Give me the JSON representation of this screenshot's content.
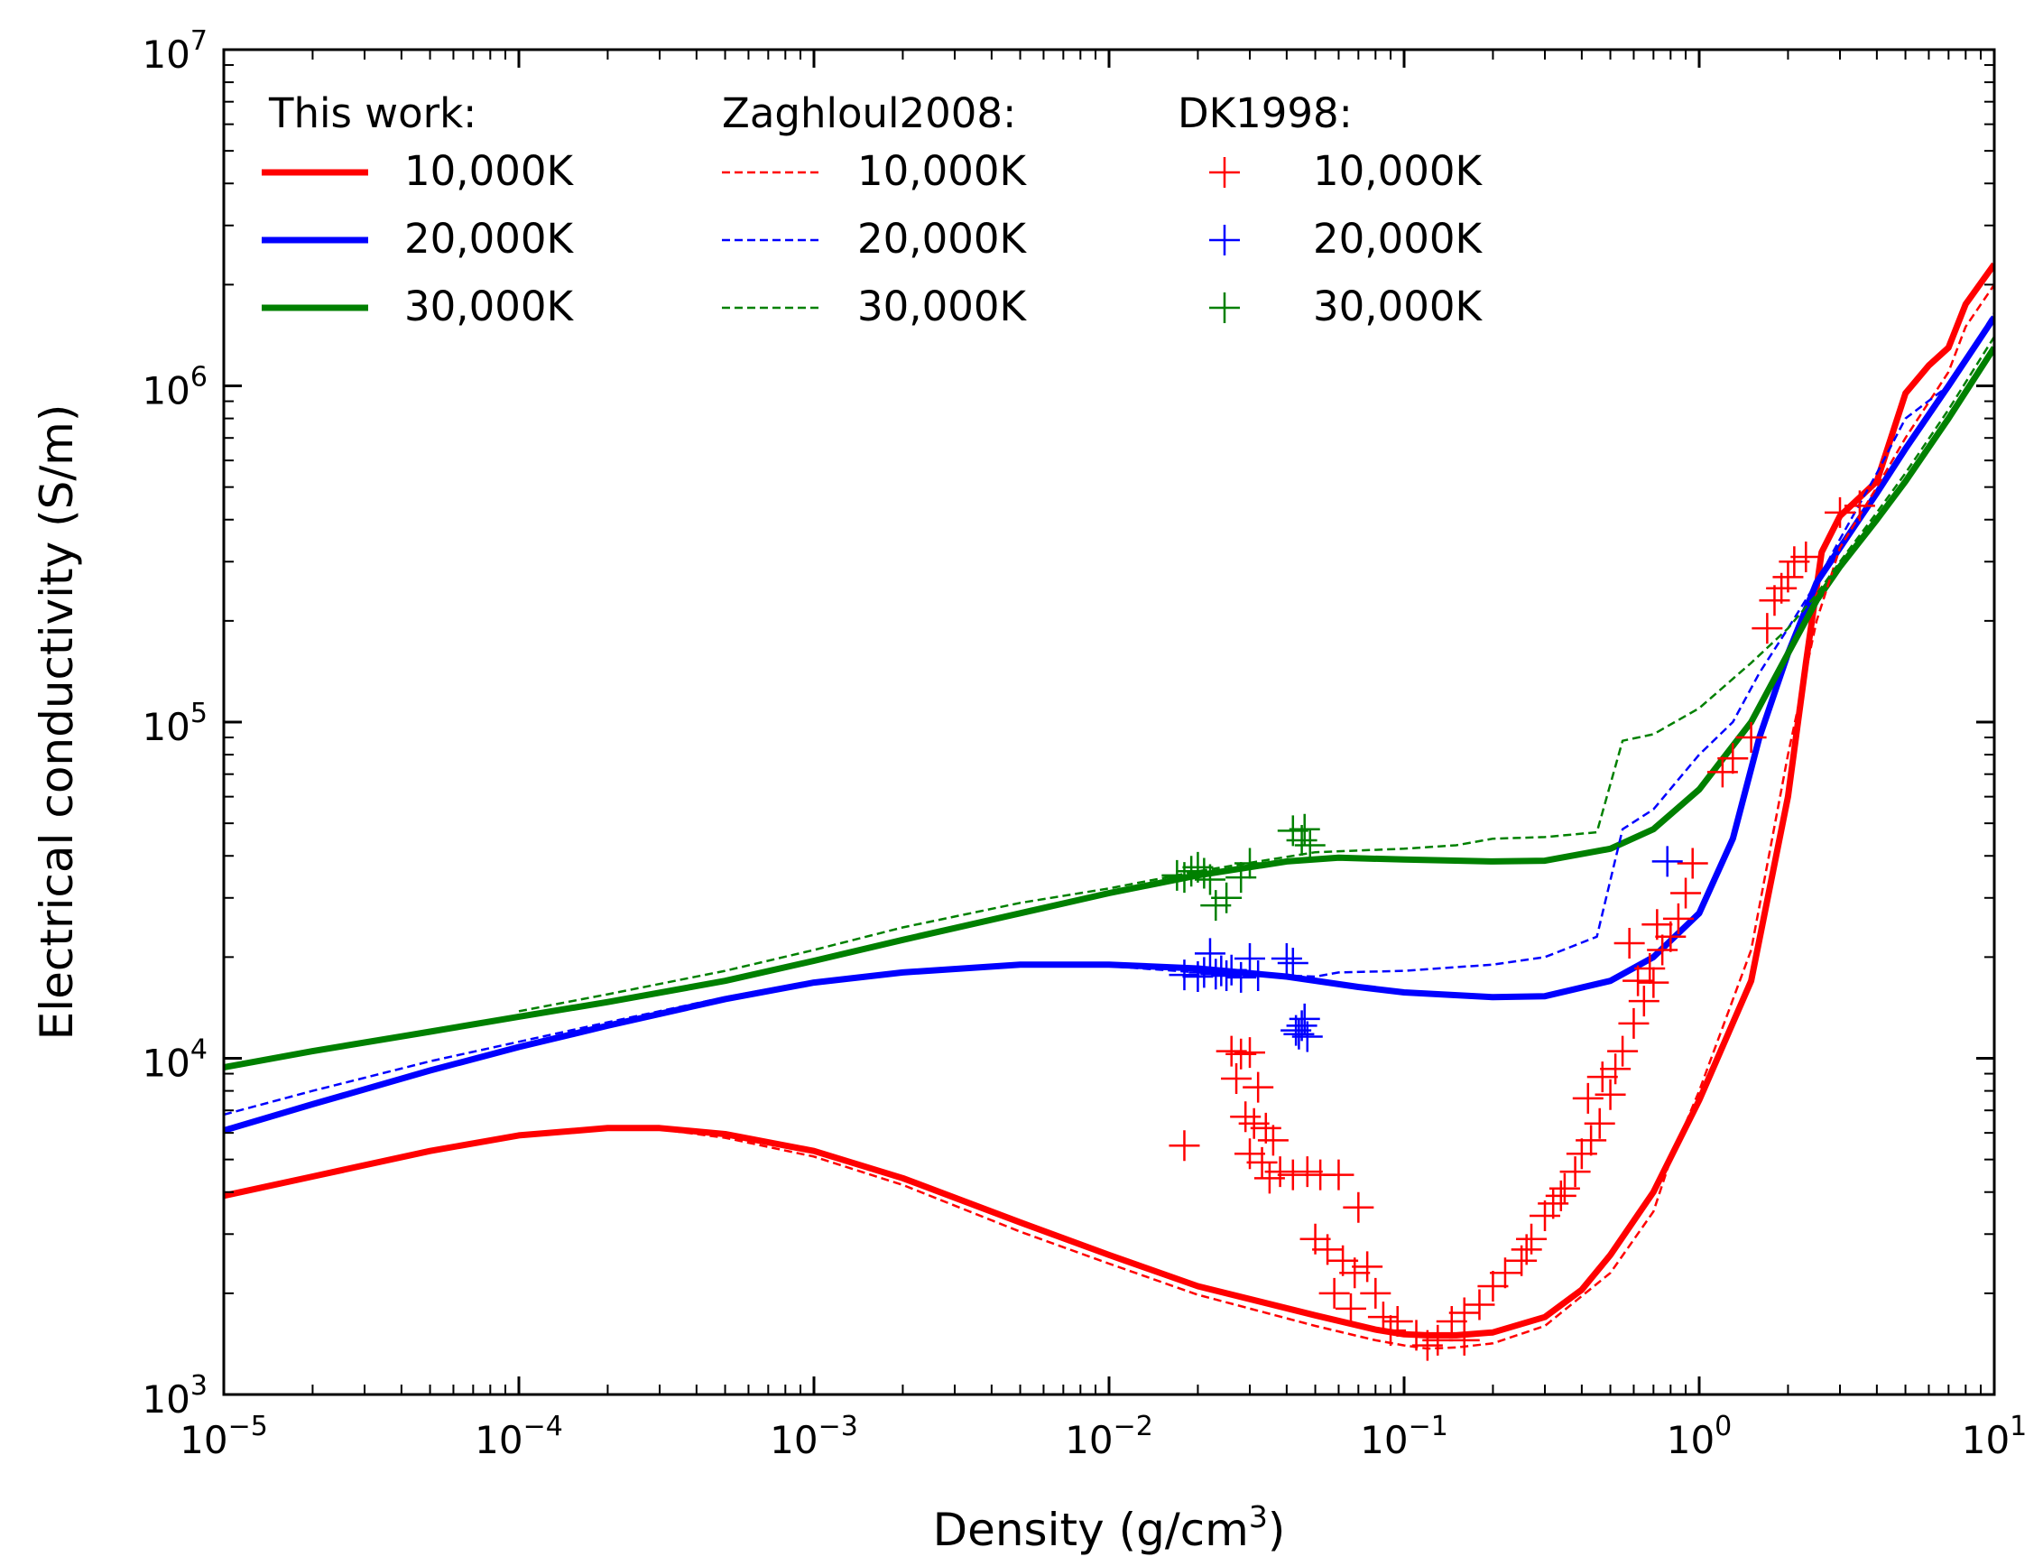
{
  "chart_data": {
    "type": "line",
    "title": "",
    "xlabel": "Density (g/cm",
    "xlabel_sup": "3",
    "xlabel_end": ")",
    "ylabel": "Electrical conductivity (S/m)",
    "xscale": "log",
    "yscale": "log",
    "xlim": [
      1e-05,
      10
    ],
    "ylim": [
      1000,
      10000000
    ],
    "grid": false,
    "legend_position": "top-left",
    "x_ticks": [
      {
        "base": "10",
        "exp": "−5"
      },
      {
        "base": "10",
        "exp": "−4"
      },
      {
        "base": "10",
        "exp": "−3"
      },
      {
        "base": "10",
        "exp": "−2"
      },
      {
        "base": "10",
        "exp": "−1"
      },
      {
        "base": "10",
        "exp": "0"
      },
      {
        "base": "10",
        "exp": "1"
      }
    ],
    "y_ticks": [
      {
        "base": "10",
        "exp": "3"
      },
      {
        "base": "10",
        "exp": "4"
      },
      {
        "base": "10",
        "exp": "5"
      },
      {
        "base": "10",
        "exp": "6"
      },
      {
        "base": "10",
        "exp": "7"
      }
    ],
    "legend_groups": [
      {
        "title": "This work:",
        "entries": [
          "10,000K",
          "20,000K",
          "30,000K"
        ]
      },
      {
        "title": "Zaghloul2008:",
        "entries": [
          "10,000K",
          "20,000K",
          "30,000K"
        ]
      },
      {
        "title": "DK1998:",
        "entries": [
          "10,000K",
          "20,000K",
          "30,000K"
        ]
      }
    ],
    "colors": {
      "10000K": "#ff0000",
      "20000K": "#0000ff",
      "30000K": "#008000"
    },
    "series": [
      {
        "name": "This work 10,000K",
        "style": "solid",
        "color": "#ff0000",
        "points": [
          [
            1e-05,
            3900
          ],
          [
            2e-05,
            4450
          ],
          [
            5e-05,
            5300
          ],
          [
            0.0001,
            5900
          ],
          [
            0.0002,
            6200
          ],
          [
            0.0003,
            6200
          ],
          [
            0.0005,
            5950
          ],
          [
            0.001,
            5300
          ],
          [
            0.002,
            4400
          ],
          [
            0.005,
            3250
          ],
          [
            0.01,
            2600
          ],
          [
            0.02,
            2100
          ],
          [
            0.05,
            1720
          ],
          [
            0.08,
            1560
          ],
          [
            0.1,
            1510
          ],
          [
            0.12,
            1500
          ],
          [
            0.15,
            1500
          ],
          [
            0.2,
            1530
          ],
          [
            0.3,
            1700
          ],
          [
            0.4,
            2050
          ],
          [
            0.5,
            2600
          ],
          [
            0.7,
            4000
          ],
          [
            1.0,
            7500
          ],
          [
            1.5,
            17000
          ],
          [
            2.0,
            60000
          ],
          [
            2.3,
            150000
          ],
          [
            2.6,
            320000
          ],
          [
            3,
            410000
          ],
          [
            4,
            520000
          ],
          [
            5,
            950000
          ],
          [
            6,
            1150000
          ],
          [
            7,
            1300000
          ],
          [
            8,
            1750000
          ],
          [
            10,
            2300000
          ]
        ]
      },
      {
        "name": "This work 20,000K",
        "style": "solid",
        "color": "#0000ff",
        "points": [
          [
            1e-05,
            6100
          ],
          [
            2e-05,
            7300
          ],
          [
            5e-05,
            9200
          ],
          [
            0.0001,
            10800
          ],
          [
            0.0002,
            12500
          ],
          [
            0.0005,
            15000
          ],
          [
            0.001,
            16800
          ],
          [
            0.002,
            18000
          ],
          [
            0.005,
            19000
          ],
          [
            0.01,
            19000
          ],
          [
            0.02,
            18500
          ],
          [
            0.04,
            17500
          ],
          [
            0.07,
            16300
          ],
          [
            0.1,
            15700
          ],
          [
            0.2,
            15200
          ],
          [
            0.3,
            15300
          ],
          [
            0.5,
            17000
          ],
          [
            0.7,
            20000
          ],
          [
            1.0,
            27000
          ],
          [
            1.3,
            45000
          ],
          [
            1.6,
            90000
          ],
          [
            2.0,
            160000
          ],
          [
            2.5,
            260000
          ],
          [
            3,
            330000
          ],
          [
            4,
            480000
          ],
          [
            5,
            650000
          ],
          [
            7,
            1000000
          ],
          [
            10,
            1600000
          ]
        ]
      },
      {
        "name": "This work 30,000K",
        "style": "solid",
        "color": "#008000",
        "points": [
          [
            1e-05,
            9400
          ],
          [
            2e-05,
            10500
          ],
          [
            5e-05,
            12000
          ],
          [
            0.0001,
            13300
          ],
          [
            0.0002,
            14700
          ],
          [
            0.0005,
            17000
          ],
          [
            0.001,
            19500
          ],
          [
            0.002,
            22500
          ],
          [
            0.005,
            27000
          ],
          [
            0.01,
            31000
          ],
          [
            0.02,
            35000
          ],
          [
            0.04,
            38500
          ],
          [
            0.06,
            39500
          ],
          [
            0.1,
            39000
          ],
          [
            0.2,
            38500
          ],
          [
            0.3,
            38700
          ],
          [
            0.5,
            42000
          ],
          [
            0.7,
            48000
          ],
          [
            1.0,
            63000
          ],
          [
            1.5,
            100000
          ],
          [
            2.0,
            160000
          ],
          [
            2.5,
            230000
          ],
          [
            3,
            290000
          ],
          [
            4,
            400000
          ],
          [
            5,
            520000
          ],
          [
            7,
            800000
          ],
          [
            10,
            1300000
          ]
        ]
      },
      {
        "name": "Zaghloul2008 10,000K",
        "style": "dashed",
        "color": "#ff0000",
        "points": [
          [
            0.0003,
            6150
          ],
          [
            0.0005,
            5800
          ],
          [
            0.001,
            5100
          ],
          [
            0.002,
            4200
          ],
          [
            0.005,
            3050
          ],
          [
            0.01,
            2450
          ],
          [
            0.02,
            1980
          ],
          [
            0.05,
            1600
          ],
          [
            0.08,
            1450
          ],
          [
            0.1,
            1400
          ],
          [
            0.12,
            1370
          ],
          [
            0.15,
            1380
          ],
          [
            0.2,
            1420
          ],
          [
            0.3,
            1600
          ],
          [
            0.5,
            2300
          ],
          [
            0.7,
            3500
          ],
          [
            0.8,
            5000
          ],
          [
            1.0,
            8000
          ],
          [
            1.5,
            21000
          ],
          [
            2.0,
            80000
          ],
          [
            2.5,
            200000
          ],
          [
            3,
            330000
          ],
          [
            4,
            500000
          ],
          [
            5,
            700000
          ],
          [
            7,
            1100000
          ],
          [
            8,
            1500000
          ],
          [
            10,
            2000000
          ]
        ]
      },
      {
        "name": "Zaghloul2008 20,000K",
        "style": "dashed",
        "color": "#0000ff",
        "points": [
          [
            1e-05,
            6800
          ],
          [
            2e-05,
            8000
          ],
          [
            5e-05,
            9800
          ],
          [
            0.0001,
            11200
          ],
          [
            0.0002,
            12800
          ],
          [
            0.0005,
            15200
          ],
          [
            0.001,
            17000
          ],
          [
            0.002,
            18200
          ],
          [
            0.005,
            18900
          ],
          [
            0.01,
            18800
          ],
          [
            0.02,
            18000
          ],
          [
            0.05,
            17500
          ],
          [
            0.06,
            18000
          ],
          [
            0.1,
            18200
          ],
          [
            0.2,
            19000
          ],
          [
            0.3,
            20000
          ],
          [
            0.45,
            23000
          ],
          [
            0.55,
            48000
          ],
          [
            0.7,
            55000
          ],
          [
            1.0,
            80000
          ],
          [
            1.3,
            100000
          ],
          [
            1.6,
            140000
          ],
          [
            2.0,
            190000
          ],
          [
            2.5,
            260000
          ],
          [
            3,
            350000
          ],
          [
            4,
            550000
          ],
          [
            5,
            800000
          ],
          [
            7,
            1000000
          ],
          [
            10,
            1650000
          ]
        ]
      },
      {
        "name": "Zaghloul2008 30,000K",
        "style": "dashed",
        "color": "#008000",
        "points": [
          [
            0.0001,
            13800
          ],
          [
            0.0002,
            15500
          ],
          [
            0.0005,
            18200
          ],
          [
            0.001,
            21000
          ],
          [
            0.002,
            24500
          ],
          [
            0.005,
            29000
          ],
          [
            0.01,
            32000
          ],
          [
            0.02,
            36000
          ],
          [
            0.05,
            41000
          ],
          [
            0.1,
            42000
          ],
          [
            0.15,
            43000
          ],
          [
            0.2,
            45000
          ],
          [
            0.3,
            45500
          ],
          [
            0.45,
            47000
          ],
          [
            0.55,
            88000
          ],
          [
            0.7,
            92000
          ],
          [
            1.0,
            110000
          ],
          [
            1.5,
            150000
          ],
          [
            2.0,
            190000
          ],
          [
            2.5,
            240000
          ],
          [
            3,
            300000
          ],
          [
            4,
            420000
          ],
          [
            5,
            550000
          ],
          [
            7,
            850000
          ],
          [
            10,
            1400000
          ]
        ]
      }
    ],
    "markers": [
      {
        "name": "DK1998 10,000K",
        "color": "#ff0000",
        "points": [
          [
            0.018,
            5500
          ],
          [
            0.026,
            10500
          ],
          [
            0.028,
            10300
          ],
          [
            0.03,
            10400
          ],
          [
            0.027,
            8700
          ],
          [
            0.032,
            8200
          ],
          [
            0.029,
            6700
          ],
          [
            0.031,
            6400
          ],
          [
            0.034,
            6200
          ],
          [
            0.036,
            5700
          ],
          [
            0.03,
            5200
          ],
          [
            0.033,
            4900
          ],
          [
            0.038,
            4600
          ],
          [
            0.042,
            4500
          ],
          [
            0.047,
            4600
          ],
          [
            0.035,
            4400
          ],
          [
            0.052,
            4500
          ],
          [
            0.06,
            4500
          ],
          [
            0.07,
            3600
          ],
          [
            0.05,
            2900
          ],
          [
            0.055,
            2700
          ],
          [
            0.062,
            2500
          ],
          [
            0.068,
            2300
          ],
          [
            0.075,
            2400
          ],
          [
            0.058,
            2000
          ],
          [
            0.066,
            1800
          ],
          [
            0.08,
            2000
          ],
          [
            0.085,
            1700
          ],
          [
            0.095,
            1650
          ],
          [
            0.11,
            1500
          ],
          [
            0.12,
            1400
          ],
          [
            0.13,
            1450
          ],
          [
            0.145,
            1650
          ],
          [
            0.16,
            1750
          ],
          [
            0.18,
            1850
          ],
          [
            0.2,
            2100
          ],
          [
            0.22,
            2300
          ],
          [
            0.25,
            2500
          ],
          [
            0.27,
            2900
          ],
          [
            0.3,
            3400
          ],
          [
            0.32,
            3700
          ],
          [
            0.35,
            4100
          ],
          [
            0.38,
            4600
          ],
          [
            0.4,
            5200
          ],
          [
            0.43,
            5700
          ],
          [
            0.46,
            6400
          ],
          [
            0.5,
            7800
          ],
          [
            0.52,
            9300
          ],
          [
            0.55,
            10500
          ],
          [
            0.6,
            12700
          ],
          [
            0.65,
            14800
          ],
          [
            0.7,
            16800
          ],
          [
            0.75,
            21000
          ],
          [
            0.8,
            23000
          ],
          [
            0.85,
            26000
          ],
          [
            0.9,
            31000
          ],
          [
            0.95,
            38000
          ],
          [
            0.58,
            22000
          ],
          [
            0.62,
            17000
          ],
          [
            0.42,
            7600
          ],
          [
            0.47,
            8800
          ],
          [
            1.2,
            71000
          ],
          [
            1.3,
            78000
          ],
          [
            1.5,
            90000
          ],
          [
            1.7,
            190000
          ],
          [
            1.8,
            230000
          ],
          [
            1.9,
            250000
          ],
          [
            2.0,
            270000
          ],
          [
            2.1,
            300000
          ],
          [
            2.3,
            310000
          ],
          [
            3.0,
            420000
          ],
          [
            3.5,
            440000
          ],
          [
            0.16,
            1450
          ],
          [
            0.09,
            1550
          ],
          [
            0.72,
            25000
          ],
          [
            0.68,
            18500
          ],
          [
            0.26,
            2700
          ],
          [
            0.34,
            3900
          ]
        ]
      },
      {
        "name": "DK1998 20,000K",
        "color": "#0000ff",
        "points": [
          [
            0.018,
            17700
          ],
          [
            0.02,
            17500
          ],
          [
            0.021,
            18000
          ],
          [
            0.022,
            20500
          ],
          [
            0.023,
            17800
          ],
          [
            0.024,
            18200
          ],
          [
            0.025,
            17600
          ],
          [
            0.026,
            18300
          ],
          [
            0.028,
            17400
          ],
          [
            0.03,
            19800
          ],
          [
            0.032,
            17600
          ],
          [
            0.04,
            19800
          ],
          [
            0.042,
            19200
          ],
          [
            0.044,
            11800
          ],
          [
            0.045,
            12500
          ],
          [
            0.046,
            13100
          ],
          [
            0.047,
            11600
          ],
          [
            0.043,
            12100
          ],
          [
            0.78,
            38500
          ]
        ]
      },
      {
        "name": "DK1998 30,000K",
        "color": "#008000",
        "points": [
          [
            0.017,
            35000
          ],
          [
            0.018,
            34500
          ],
          [
            0.019,
            36000
          ],
          [
            0.02,
            37000
          ],
          [
            0.021,
            35500
          ],
          [
            0.022,
            34000
          ],
          [
            0.023,
            28500
          ],
          [
            0.025,
            30000
          ],
          [
            0.028,
            34500
          ],
          [
            0.03,
            38000
          ],
          [
            0.042,
            47500
          ],
          [
            0.045,
            44500
          ],
          [
            0.046,
            48000
          ],
          [
            0.048,
            43000
          ]
        ]
      }
    ]
  }
}
